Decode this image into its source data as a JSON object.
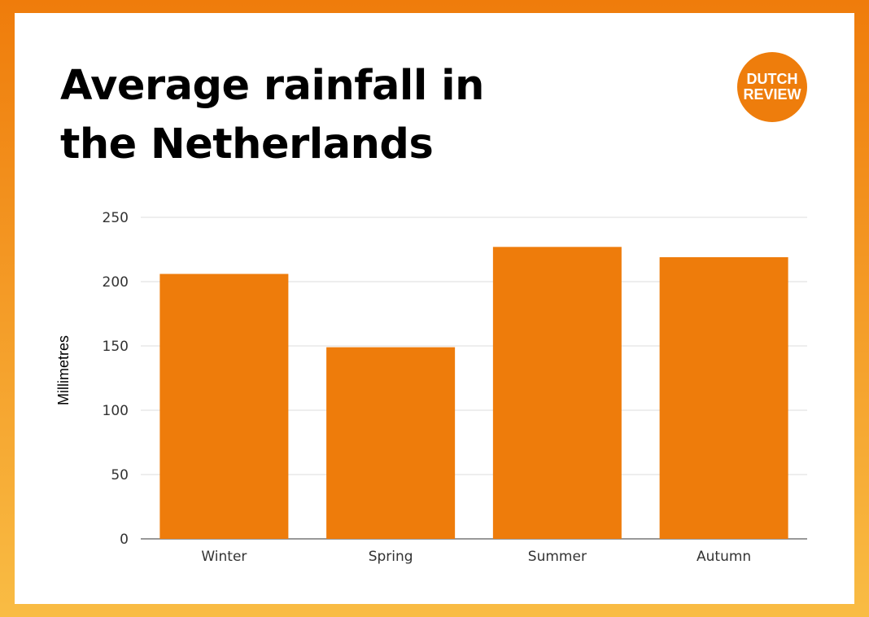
{
  "logo": {
    "line1": "DUTCH",
    "line2": "REVIEW"
  },
  "chart_data": {
    "type": "bar",
    "title": "Average rainfall in the Netherlands",
    "categories": [
      "Winter",
      "Spring",
      "Summer",
      "Autumn"
    ],
    "values": [
      206,
      149,
      227,
      219
    ],
    "xlabel": "",
    "ylabel": "Millimetres",
    "ylim": [
      0,
      250
    ],
    "yticks": [
      0,
      50,
      100,
      150,
      200,
      250
    ],
    "grid": true,
    "bar_color": "#ee7c0b"
  }
}
